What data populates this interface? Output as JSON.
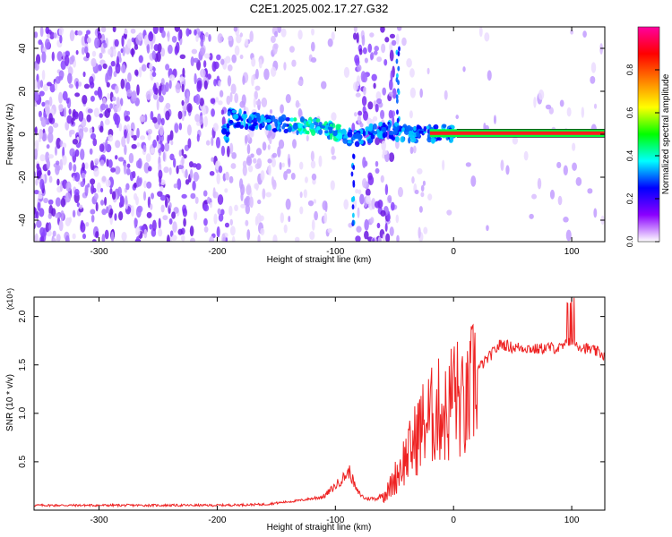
{
  "title": "C2E1.2025.002.17.27.G32",
  "colorbar": {
    "label": "Normalized spectral amplitude",
    "ticks": [
      "0.0",
      "0.2",
      "0.4",
      "0.6",
      "0.8"
    ],
    "tick_values": [
      0.0,
      0.2,
      0.4,
      0.6,
      0.8
    ],
    "range": [
      0,
      1
    ],
    "colors": [
      "#ffffff",
      "#8a00ff",
      "#0000ff",
      "#00ffff",
      "#00ff00",
      "#ffff00",
      "#ff8000",
      "#ff0000",
      "#ff00a0"
    ]
  },
  "chart_data": [
    {
      "type": "heatmap",
      "xlabel": "Height of straight line (km)",
      "ylabel": "Frequency (Hz)",
      "xlim": [
        -355,
        128
      ],
      "ylim": [
        -50,
        50
      ],
      "xticks": [
        -300,
        -200,
        -100,
        0,
        100
      ],
      "xtick_labels": [
        "-300",
        "-200",
        "-100",
        "0",
        "100"
      ],
      "yticks": [
        -40,
        -20,
        0,
        20,
        40
      ],
      "ytick_labels": [
        "-40",
        "-20",
        "0",
        "20",
        "40"
      ],
      "description_of_content": "",
      "signal_track": {
        "x": [
          -190,
          -170,
          -150,
          -130,
          -110,
          -95,
          -85,
          -60,
          -45,
          -35,
          -25,
          -15,
          0,
          50,
          128
        ],
        "y": [
          8,
          6,
          5,
          4,
          3,
          0,
          -2,
          2,
          1,
          0,
          0.5,
          0.5,
          0.5,
          0.5,
          0.5
        ]
      }
    },
    {
      "type": "line",
      "xlabel": "Height of straight line (km)",
      "ylabel": "SNR (10 * v/v)",
      "yscale_label": "(x10⁴)",
      "xlim": [
        -355,
        128
      ],
      "ylim": [
        0,
        2.2
      ],
      "xticks": [
        -300,
        -200,
        -100,
        0,
        100
      ],
      "xtick_labels": [
        "-300",
        "-200",
        "-100",
        "0",
        "100"
      ],
      "yticks": [
        0.5,
        1.0,
        1.5,
        2.0
      ],
      "ytick_labels": [
        "0.5",
        "1.0",
        "1.5",
        "2.0"
      ],
      "series": [
        {
          "color": "#ee2222",
          "x": [
            -355,
            -300,
            -250,
            -200,
            -160,
            -130,
            -110,
            -100,
            -92,
            -88,
            -82,
            -75,
            -65,
            -55,
            -50,
            -45,
            -40,
            -35,
            -30,
            -25,
            -20,
            -15,
            -10,
            -5,
            0,
            5,
            10,
            15,
            20,
            30,
            40,
            50,
            60,
            70,
            80,
            90,
            100,
            110,
            120,
            128
          ],
          "y": [
            0.05,
            0.05,
            0.05,
            0.05,
            0.06,
            0.1,
            0.14,
            0.25,
            0.35,
            0.4,
            0.2,
            0.12,
            0.12,
            0.2,
            0.32,
            0.45,
            0.55,
            0.65,
            0.8,
            0.9,
            0.95,
            1.0,
            1.05,
            0.95,
            1.3,
            1.1,
            1.0,
            1.25,
            1.45,
            1.58,
            1.72,
            1.68,
            1.68,
            1.66,
            1.68,
            1.67,
            1.74,
            1.68,
            1.64,
            1.6
          ]
        }
      ]
    }
  ]
}
